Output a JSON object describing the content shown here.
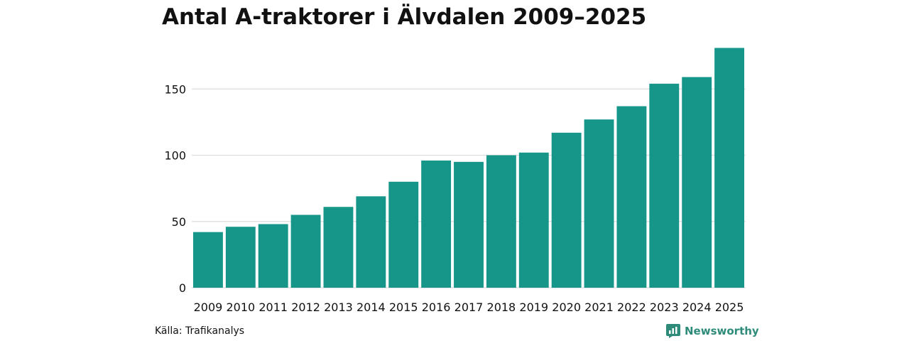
{
  "chart_data": {
    "type": "bar",
    "title": "Antal A-traktorer i Älvdalen 2009–2025",
    "categories": [
      "2009",
      "2010",
      "2011",
      "2012",
      "2013",
      "2014",
      "2015",
      "2016",
      "2017",
      "2018",
      "2019",
      "2020",
      "2021",
      "2022",
      "2023",
      "2024",
      "2025"
    ],
    "values": [
      42,
      46,
      48,
      55,
      61,
      69,
      80,
      96,
      95,
      100,
      102,
      117,
      127,
      137,
      154,
      159,
      181
    ],
    "ylim": [
      0,
      185
    ],
    "yticks": [
      "0",
      "50",
      "100",
      "150"
    ],
    "xlabel": "",
    "ylabel": "",
    "grid": true,
    "bar_color": "#159688",
    "grid_color": "#dddddd"
  },
  "footer": {
    "source": "Källa: Trafikanalys",
    "brand": "Newsworthy",
    "brand_color": "#2e8b7a"
  }
}
